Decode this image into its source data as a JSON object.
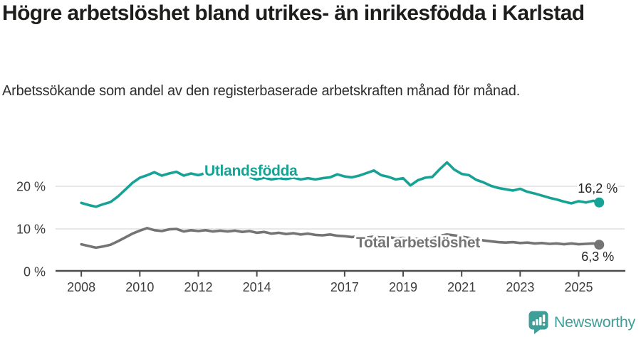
{
  "header": {
    "title": "Högre arbetslöshet bland utrikes- än inrikesfödda i Karlstad",
    "subtitle": "Arbetssökande som andel av den registerbaserade arbetskraften månad för månad."
  },
  "branding": {
    "logo_text": "Newsworthy",
    "logo_color": "#3f9f98"
  },
  "colors": {
    "background": "#ffffff",
    "title": "#1d1d1b",
    "subtitle": "#2e2e2e",
    "grid": "#d9d9d9",
    "axis": "#4b4b4b",
    "tick_text": "#3d3d3d",
    "value_label": "#252525"
  },
  "chart_data": {
    "type": "line",
    "title": "Högre arbetslöshet bland utrikes- än inrikesfödda i Karlstad",
    "unit": "%",
    "grid": "horizontal",
    "legend": "inline-labels",
    "x_axis": {
      "range": [
        2007.12,
        2026.57
      ],
      "ticks": [
        2008,
        2010,
        2012,
        2014,
        2017,
        2019,
        2021,
        2023,
        2025
      ],
      "labels": [
        "2008",
        "2010",
        "2012",
        "2014",
        "2017",
        "2019",
        "2021",
        "2023",
        "2025"
      ]
    },
    "y_axis": {
      "range": [
        0,
        27.5
      ],
      "ticks": [
        0,
        10,
        20
      ],
      "labels": [
        "0 %",
        "10 %",
        "20 %"
      ]
    },
    "x": [
      2008.0,
      2008.25,
      2008.5,
      2008.75,
      2009.0,
      2009.25,
      2009.5,
      2009.75,
      2010.0,
      2010.25,
      2010.5,
      2010.75,
      2011.0,
      2011.25,
      2011.5,
      2011.75,
      2012.0,
      2012.25,
      2012.5,
      2012.75,
      2013.0,
      2013.25,
      2013.5,
      2013.75,
      2014.0,
      2014.25,
      2014.5,
      2014.75,
      2015.0,
      2015.25,
      2015.5,
      2015.75,
      2016.0,
      2016.25,
      2016.5,
      2016.75,
      2017.0,
      2017.25,
      2017.5,
      2017.75,
      2018.0,
      2018.25,
      2018.5,
      2018.75,
      2019.0,
      2019.25,
      2019.5,
      2019.75,
      2020.0,
      2020.25,
      2020.5,
      2020.75,
      2021.0,
      2021.25,
      2021.5,
      2021.75,
      2022.0,
      2022.25,
      2022.5,
      2022.75,
      2023.0,
      2023.25,
      2023.5,
      2023.75,
      2024.0,
      2024.25,
      2024.5,
      2024.75,
      2025.0,
      2025.25,
      2025.5,
      2025.7
    ],
    "series": [
      {
        "name": "Utlandsfödda",
        "color": "#17a296",
        "end_value": 16.2,
        "end_label": "16,2 %",
        "values": [
          16.1,
          15.6,
          15.2,
          15.8,
          16.3,
          17.6,
          19.2,
          20.8,
          22.0,
          22.6,
          23.3,
          22.5,
          23.0,
          23.4,
          22.5,
          23.0,
          22.6,
          23.1,
          22.7,
          23.0,
          22.8,
          22.5,
          22.7,
          22.2,
          21.6,
          22.0,
          21.6,
          21.9,
          21.7,
          22.0,
          21.6,
          21.9,
          21.6,
          21.9,
          22.1,
          22.8,
          22.3,
          22.1,
          22.5,
          23.1,
          23.7,
          22.6,
          22.2,
          21.6,
          21.9,
          20.2,
          21.4,
          22.0,
          22.2,
          24.0,
          25.6,
          23.9,
          22.9,
          22.6,
          21.5,
          20.9,
          20.1,
          19.6,
          19.3,
          19.0,
          19.4,
          18.7,
          18.3,
          17.8,
          17.3,
          16.9,
          16.4,
          16.0,
          16.5,
          16.2,
          16.6,
          16.2
        ]
      },
      {
        "name": "Total arbetslöshet",
        "color": "#747474",
        "end_value": 6.3,
        "end_label": "6,3 %",
        "values": [
          6.4,
          6.0,
          5.6,
          5.9,
          6.3,
          7.1,
          8.0,
          8.9,
          9.6,
          10.2,
          9.7,
          9.5,
          9.9,
          10.0,
          9.4,
          9.7,
          9.5,
          9.7,
          9.4,
          9.6,
          9.4,
          9.6,
          9.3,
          9.5,
          9.1,
          9.3,
          8.9,
          9.1,
          8.8,
          9.0,
          8.7,
          8.9,
          8.6,
          8.5,
          8.7,
          8.4,
          8.3,
          8.1,
          8.3,
          8.0,
          8.2,
          8.0,
          8.1,
          7.8,
          7.9,
          7.6,
          7.7,
          7.5,
          7.8,
          8.4,
          8.7,
          8.5,
          8.2,
          7.9,
          7.6,
          7.3,
          7.1,
          6.9,
          6.8,
          6.9,
          6.7,
          6.8,
          6.6,
          6.7,
          6.5,
          6.6,
          6.4,
          6.6,
          6.4,
          6.5,
          6.6,
          6.3
        ]
      }
    ]
  }
}
